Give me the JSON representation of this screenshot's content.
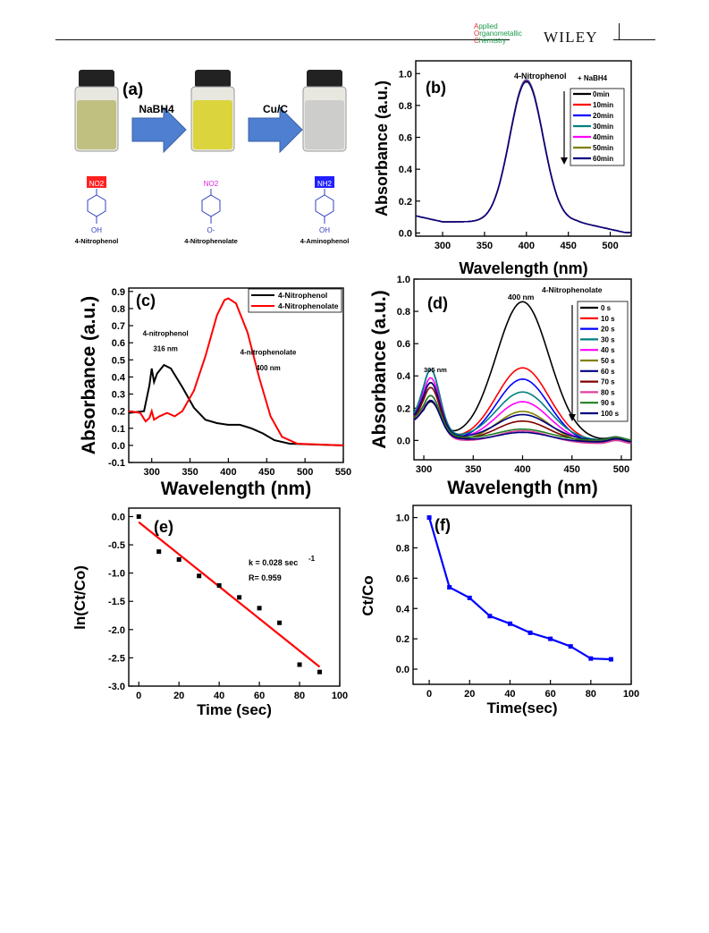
{
  "header": {
    "journal_line1_initial": "A",
    "journal_line1_rest": "pplied",
    "journal_line2_initial": "O",
    "journal_line2_rest": "rganometallic",
    "journal_line3_initial": "C",
    "journal_line3_rest": "hemistry",
    "publisher": "WILEY"
  },
  "panel_a": {
    "label": "(a)",
    "step1_reagent": "NaBH4",
    "step2_reagent": "Cu/C",
    "compounds": [
      {
        "name": "4-Nitrophenol",
        "top_group": "NO2",
        "bottom_group": "OH",
        "highlight": "#ff2020"
      },
      {
        "name": "4-Nitrophenolate",
        "top_group": "NO2",
        "bottom_group": "O-",
        "highlight": "none"
      },
      {
        "name": "4-Aminophenol",
        "top_group": "NH2",
        "bottom_group": "OH",
        "highlight": "#2020ff"
      }
    ],
    "vial_colors": [
      "#b8b870",
      "#d8d020",
      "#c8c8c8"
    ]
  },
  "chart_data": [
    {
      "panel": "(b)",
      "type": "line",
      "annotation": "4-Nitrophenol",
      "annotation2": "+ NaBH4",
      "xlabel": "Wavelength (nm)",
      "ylabel": "Absorbance (a.u.)",
      "xlim": [
        268,
        525
      ],
      "ylim": [
        -0.02,
        1.08
      ],
      "xticks": [
        300,
        350,
        400,
        450,
        500
      ],
      "yticks": [
        0.0,
        0.2,
        0.4,
        0.6,
        0.8,
        1.0
      ],
      "peak_center": 400,
      "peak_width": 28,
      "baseline": 0.07,
      "series": [
        {
          "name": "0min",
          "color": "#000000",
          "peak": 0.95
        },
        {
          "name": "10min",
          "color": "#ff0000",
          "peak": 0.955
        },
        {
          "name": "20min",
          "color": "#0000ff",
          "peak": 0.96
        },
        {
          "name": "30min",
          "color": "#008080",
          "peak": 0.962
        },
        {
          "name": "40min",
          "color": "#ff00ff",
          "peak": 0.958
        },
        {
          "name": "50min",
          "color": "#808000",
          "peak": 0.955
        },
        {
          "name": "60min",
          "color": "#000080",
          "peak": 0.952
        }
      ]
    },
    {
      "panel": "(c)",
      "type": "line",
      "annotations": [
        {
          "text": "4-nitrophenol",
          "x": 318,
          "y": 0.64
        },
        {
          "text": "316 nm",
          "x": 318,
          "y": 0.55
        },
        {
          "text": "4-nitrophenolate",
          "x": 452,
          "y": 0.53
        },
        {
          "text": "400 nm",
          "x": 452,
          "y": 0.44
        }
      ],
      "xlabel": "Wavelength (nm)",
      "ylabel": "Absorbance (a.u.)",
      "xlim": [
        270,
        550
      ],
      "ylim": [
        -0.1,
        0.92
      ],
      "xticks": [
        300,
        350,
        400,
        450,
        500,
        550
      ],
      "yticks": [
        -0.1,
        0.0,
        0.1,
        0.2,
        0.3,
        0.4,
        0.5,
        0.6,
        0.7,
        0.8,
        0.9
      ],
      "series": [
        {
          "name": "4-Nitrophenol",
          "color": "#000000",
          "points": [
            [
              270,
              0.19
            ],
            [
              290,
              0.2
            ],
            [
              297,
              0.35
            ],
            [
              300,
              0.45
            ],
            [
              303,
              0.37
            ],
            [
              307,
              0.42
            ],
            [
              316,
              0.47
            ],
            [
              325,
              0.45
            ],
            [
              340,
              0.34
            ],
            [
              355,
              0.22
            ],
            [
              370,
              0.15
            ],
            [
              385,
              0.13
            ],
            [
              400,
              0.12
            ],
            [
              415,
              0.12
            ],
            [
              430,
              0.1
            ],
            [
              445,
              0.07
            ],
            [
              460,
              0.03
            ],
            [
              480,
              0.01
            ],
            [
              550,
              0.0
            ]
          ]
        },
        {
          "name": "4-Nitrophenolate",
          "color": "#ff0000",
          "points": [
            [
              270,
              0.2
            ],
            [
              285,
              0.19
            ],
            [
              292,
              0.14
            ],
            [
              297,
              0.16
            ],
            [
              300,
              0.2
            ],
            [
              303,
              0.15
            ],
            [
              310,
              0.17
            ],
            [
              320,
              0.19
            ],
            [
              330,
              0.17
            ],
            [
              340,
              0.2
            ],
            [
              355,
              0.32
            ],
            [
              370,
              0.52
            ],
            [
              385,
              0.76
            ],
            [
              395,
              0.85
            ],
            [
              400,
              0.86
            ],
            [
              410,
              0.83
            ],
            [
              425,
              0.66
            ],
            [
              440,
              0.4
            ],
            [
              455,
              0.17
            ],
            [
              470,
              0.05
            ],
            [
              490,
              0.01
            ],
            [
              550,
              0.0
            ]
          ]
        }
      ]
    },
    {
      "panel": "(d)",
      "type": "line",
      "annotation": "4-Nitrophenolate",
      "peak_label": "400 nm",
      "shoulder_label": "305 nm",
      "xlabel": "Wavelength (nm)",
      "ylabel": "Absorbance (a.u.)",
      "xlim": [
        290,
        510
      ],
      "ylim": [
        -0.12,
        1.0
      ],
      "xticks": [
        300,
        350,
        400,
        450,
        500
      ],
      "yticks": [
        0.0,
        0.2,
        0.4,
        0.6,
        0.8,
        1.0
      ],
      "series": [
        {
          "name": "0 s",
          "color": "#000000",
          "peak": 0.86,
          "shoulder": 0.2
        },
        {
          "name": "10 s",
          "color": "#ff0000",
          "peak": 0.46,
          "shoulder": 0.33
        },
        {
          "name": "20 s",
          "color": "#0000ff",
          "peak": 0.4,
          "shoulder": 0.42
        },
        {
          "name": "30 s",
          "color": "#008080",
          "peak": 0.3,
          "shoulder": 0.4
        },
        {
          "name": "40 s",
          "color": "#ff00ff",
          "peak": 0.25,
          "shoulder": 0.36
        },
        {
          "name": "50 s",
          "color": "#808000",
          "peak": 0.2,
          "shoulder": 0.34
        },
        {
          "name": "60 s",
          "color": "#000080",
          "peak": 0.16,
          "shoulder": 0.32
        },
        {
          "name": "70 s",
          "color": "#800000",
          "peak": 0.13,
          "shoulder": 0.3
        },
        {
          "name": "80 s",
          "color": "#e040a0",
          "peak": 0.08,
          "shoulder": 0.26
        },
        {
          "name": "90 s",
          "color": "#208020",
          "peak": 0.07,
          "shoulder": 0.24
        },
        {
          "name": "100 s",
          "color": "#000080",
          "peak": 0.06,
          "shoulder": 0.22
        }
      ]
    },
    {
      "panel": "(e)",
      "type": "scatter",
      "xlabel": "Time (sec)",
      "ylabel": "ln(Ct/Co)",
      "xlim": [
        -5,
        100
      ],
      "ylim": [
        -3.0,
        0.15
      ],
      "xticks": [
        0,
        20,
        40,
        60,
        80,
        100
      ],
      "yticks": [
        0.0,
        -0.5,
        -1.0,
        -1.5,
        -2.0,
        -2.5,
        -3.0
      ],
      "points_x": [
        0,
        10,
        20,
        30,
        40,
        50,
        60,
        70,
        80,
        90
      ],
      "points_y": [
        0.0,
        -0.62,
        -0.76,
        -1.05,
        -1.22,
        -1.43,
        -1.62,
        -1.88,
        -2.62,
        -2.75
      ],
      "fit": {
        "x": [
          0,
          90
        ],
        "y": [
          -0.1,
          -2.66
        ],
        "color": "#ff0000"
      },
      "annotation_k": "k = 0.028 sec",
      "annotation_k_exp": "-1",
      "annotation_r": "R= 0.959"
    },
    {
      "panel": "(f)",
      "type": "line",
      "xlabel": "Time(sec)",
      "ylabel": "Ct/Co",
      "xlim": [
        -8,
        100
      ],
      "ylim": [
        -0.1,
        1.08
      ],
      "xticks": [
        0,
        20,
        40,
        60,
        80,
        100
      ],
      "yticks": [
        0.0,
        0.2,
        0.4,
        0.6,
        0.8,
        1.0
      ],
      "x": [
        0,
        10,
        20,
        30,
        40,
        50,
        60,
        70,
        80,
        90
      ],
      "y": [
        1.0,
        0.54,
        0.47,
        0.35,
        0.3,
        0.24,
        0.2,
        0.15,
        0.07,
        0.065
      ],
      "color": "#0000ff"
    }
  ]
}
